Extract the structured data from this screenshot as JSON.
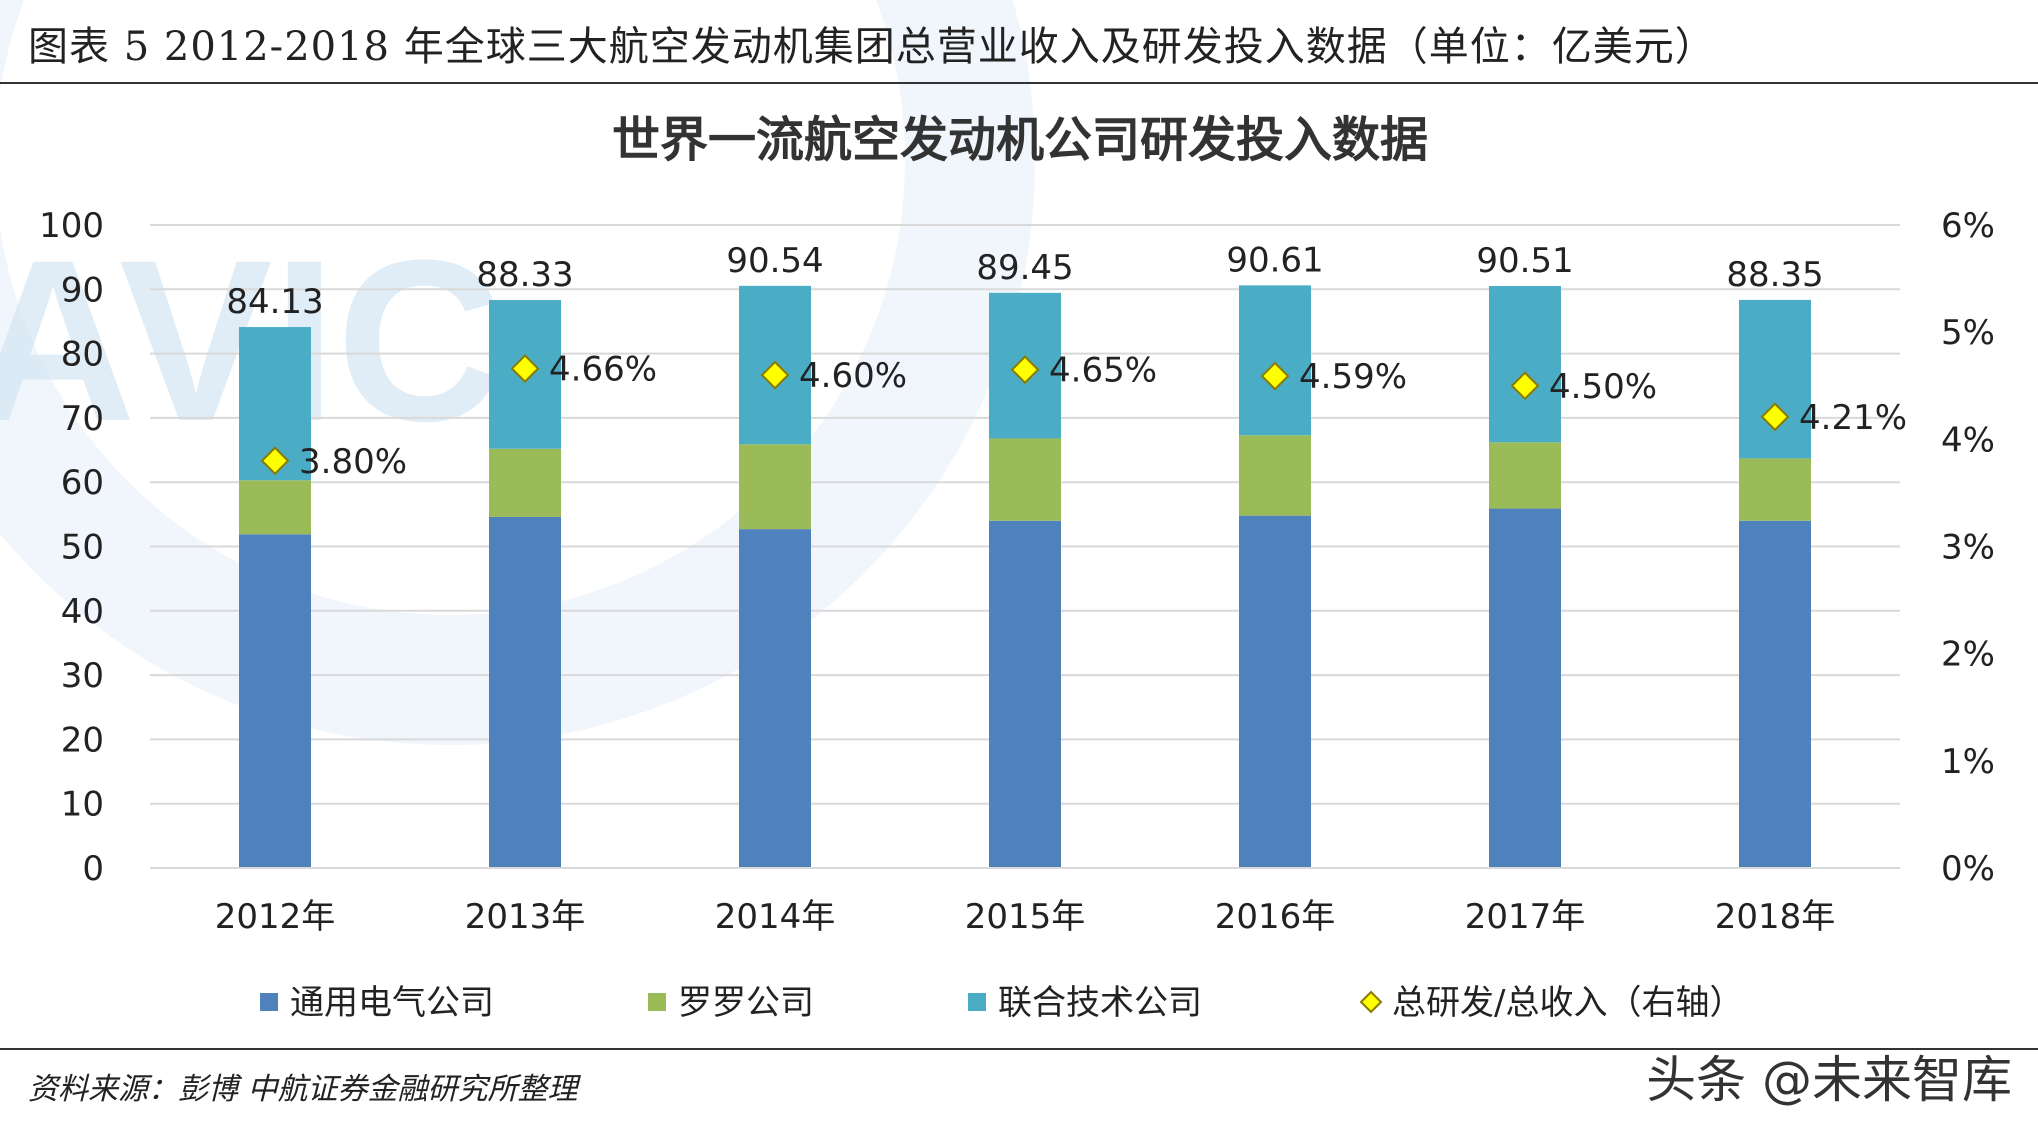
{
  "caption": "图表 5 2012-2018 年全球三大航空发动机集团总营业收入及研发投入数据（单位：亿美元）",
  "source": "资料来源：彭博 中航证券金融研究所整理",
  "brand": "头条 @未来智库",
  "watermark_text": "AVIC",
  "colors": {
    "ge": "#4F81BD",
    "rr": "#9BBB59",
    "utc": "#4BACC6",
    "ratio_marker": "#FFFF00",
    "ratio_marker_stroke": "#8A7A00",
    "grid": "#D9D9D9",
    "axis": "#D9D9D9",
    "watermark": "#CFE3F2"
  },
  "chart_data": {
    "type": "bar",
    "stacked": true,
    "title": "世界一流航空发动机公司研发投入数据",
    "categories": [
      "2012年",
      "2013年",
      "2014年",
      "2015年",
      "2016年",
      "2017年",
      "2018年"
    ],
    "series": [
      {
        "name": "通用电气公司",
        "values": [
          51.9,
          54.6,
          52.7,
          54.0,
          54.8,
          55.9,
          54.0
        ]
      },
      {
        "name": "罗罗公司",
        "values": [
          8.4,
          10.6,
          13.2,
          12.8,
          12.5,
          10.3,
          9.7
        ]
      },
      {
        "name": "联合技术公司",
        "values": [
          23.83,
          23.13,
          24.64,
          22.65,
          23.31,
          24.31,
          24.65
        ]
      }
    ],
    "totals": [
      84.13,
      88.33,
      90.54,
      89.45,
      90.61,
      90.51,
      88.35
    ],
    "total_labels": [
      "84.13",
      "88.33",
      "90.54",
      "89.45",
      "90.61",
      "90.51",
      "88.35"
    ],
    "ratio_series": {
      "name": "总研发/总收入（右轴）",
      "values": [
        3.8,
        4.66,
        4.6,
        4.65,
        4.59,
        4.5,
        4.21
      ],
      "labels": [
        "3.80%",
        "4.66%",
        "4.60%",
        "4.65%",
        "4.59%",
        "4.50%",
        "4.21%"
      ]
    },
    "ylim": [
      0,
      100
    ],
    "yticks": [
      "0",
      "10",
      "20",
      "30",
      "40",
      "50",
      "60",
      "70",
      "80",
      "90",
      "100"
    ],
    "y2lim": [
      0,
      6
    ],
    "y2ticks": [
      "0%",
      "1%",
      "2%",
      "3%",
      "4%",
      "5%",
      "6%"
    ],
    "grid": true,
    "legend_position": "bottom"
  }
}
